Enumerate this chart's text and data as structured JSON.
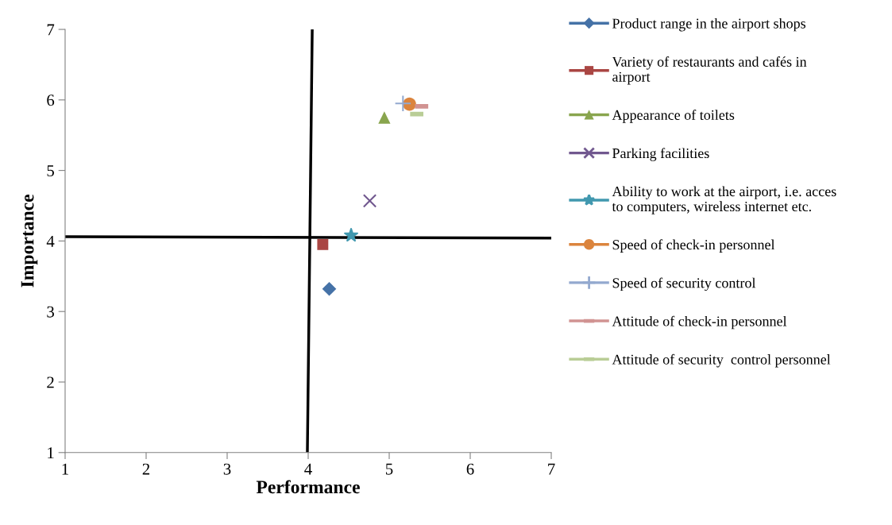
{
  "chart_data": {
    "type": "scatter",
    "xlabel": "Performance",
    "ylabel": "Importance",
    "xlim": [
      1,
      7
    ],
    "ylim": [
      1,
      7
    ],
    "xticks": [
      1,
      2,
      3,
      4,
      5,
      6,
      7
    ],
    "yticks": [
      1,
      2,
      3,
      4,
      5,
      6,
      7
    ],
    "grid": false,
    "legend": "right",
    "series": [
      {
        "name": "Product range in the airport shops",
        "color": "#4572a7",
        "marker": "diamond",
        "x": [
          4.26
        ],
        "values": [
          3.32
        ]
      },
      {
        "name": "Variety of restaurants and cafés in\nairport",
        "color": "#aa4643",
        "marker": "square",
        "x": [
          4.18
        ],
        "values": [
          3.95
        ]
      },
      {
        "name": "Appearance of toilets",
        "color": "#89a54e",
        "marker": "triangle",
        "x": [
          4.94
        ],
        "values": [
          5.75
        ]
      },
      {
        "name": "Parking facilities",
        "color": "#71588f",
        "marker": "x",
        "x": [
          4.76
        ],
        "values": [
          4.57
        ]
      },
      {
        "name": "Ability to work at the airport, i.e. acces\nto computers, wireless internet etc.",
        "color": "#4198af",
        "marker": "star",
        "x": [
          4.53
        ],
        "values": [
          4.08
        ]
      },
      {
        "name": "Speed of check-in personnel",
        "color": "#db843d",
        "marker": "circle",
        "x": [
          5.25
        ],
        "values": [
          5.94
        ]
      },
      {
        "name": "Speed of security control",
        "color": "#93a9cf",
        "marker": "plus",
        "x": [
          5.17
        ],
        "values": [
          5.95
        ]
      },
      {
        "name": "Attitude of check-in personnel",
        "color": "#d19392",
        "x": [
          5.4
        ],
        "values": [
          5.91
        ]
      },
      {
        "name": "Attitude of security  control personnel",
        "color": "#b9cd96",
        "x": [
          5.34
        ],
        "values": [
          5.8
        ]
      },
      {
        "type": "line",
        "color": "#000000",
        "x": [
          3.99,
          4.05
        ],
        "values": [
          1,
          7
        ]
      },
      {
        "type": "line",
        "color": "#000000",
        "x": [
          1,
          7
        ],
        "values": [
          4.06,
          4.04
        ]
      }
    ]
  }
}
